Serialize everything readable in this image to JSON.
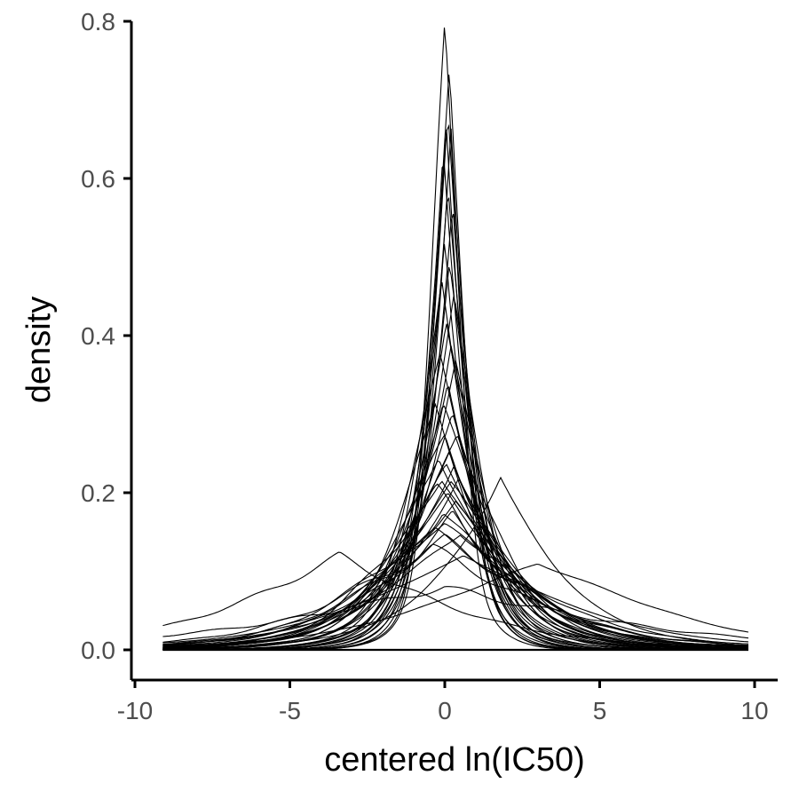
{
  "chart_data": {
    "type": "line",
    "title": "",
    "xlabel": "centered ln(IC50)",
    "ylabel": "density",
    "xlim": [
      -10,
      10
    ],
    "ylim": [
      0,
      0.8
    ],
    "xticks": [
      -10,
      -5,
      0,
      5,
      10
    ],
    "xtick_labels": [
      "-10",
      "-5",
      "0",
      "5",
      "10"
    ],
    "yticks": [
      0,
      0.2,
      0.4,
      0.6,
      0.8
    ],
    "ytick_labels": [
      "0.0",
      "0.2",
      "0.4",
      "0.6",
      "0.8"
    ],
    "grid": false,
    "legend": "none",
    "series_color": "#000000",
    "series_description": "many overlapping kernel density curves centered near 0",
    "x_support": [
      -9.1,
      9.8
    ],
    "series": [
      {
        "peak_x": 0.0,
        "peak_y": 0.76
      },
      {
        "peak_x": 0.15,
        "peak_y": 0.75
      },
      {
        "peak_x": 0.1,
        "peak_y": 0.72
      },
      {
        "peak_x": 0.05,
        "peak_y": 0.69
      },
      {
        "peak_x": 0.2,
        "peak_y": 0.66
      },
      {
        "peak_x": -0.05,
        "peak_y": 0.63
      },
      {
        "peak_x": 0.1,
        "peak_y": 0.6
      },
      {
        "peak_x": 0.25,
        "peak_y": 0.57
      },
      {
        "peak_x": 0.0,
        "peak_y": 0.54
      },
      {
        "peak_x": 0.15,
        "peak_y": 0.51
      },
      {
        "peak_x": -0.1,
        "peak_y": 0.48
      },
      {
        "peak_x": 0.3,
        "peak_y": 0.45
      },
      {
        "peak_x": 0.05,
        "peak_y": 0.42
      },
      {
        "peak_x": 0.2,
        "peak_y": 0.4
      },
      {
        "peak_x": -0.15,
        "peak_y": 0.38
      },
      {
        "peak_x": 0.35,
        "peak_y": 0.36
      },
      {
        "peak_x": 0.1,
        "peak_y": 0.34
      },
      {
        "peak_x": -0.05,
        "peak_y": 0.32
      },
      {
        "peak_x": 0.25,
        "peak_y": 0.3
      },
      {
        "peak_x": -0.3,
        "peak_y": 0.31
      },
      {
        "peak_x": 0.4,
        "peak_y": 0.28
      },
      {
        "peak_x": 0.0,
        "peak_y": 0.27
      },
      {
        "peak_x": 0.15,
        "peak_y": 0.26
      },
      {
        "peak_x": -0.2,
        "peak_y": 0.25
      },
      {
        "peak_x": 0.3,
        "peak_y": 0.24
      },
      {
        "peak_x": 0.05,
        "peak_y": 0.23
      },
      {
        "peak_x": -0.1,
        "peak_y": 0.22
      },
      {
        "peak_x": 0.45,
        "peak_y": 0.22
      },
      {
        "peak_x": 0.2,
        "peak_y": 0.21
      },
      {
        "peak_x": -0.25,
        "peak_y": 0.2
      },
      {
        "peak_x": 0.1,
        "peak_y": 0.2
      },
      {
        "peak_x": 0.35,
        "peak_y": 0.19
      },
      {
        "peak_x": -0.05,
        "peak_y": 0.18
      },
      {
        "peak_x": 0.25,
        "peak_y": 0.17
      },
      {
        "peak_x": 0.0,
        "peak_y": 0.16
      },
      {
        "peak_x": -0.3,
        "peak_y": 0.15
      },
      {
        "peak_x": 0.5,
        "peak_y": 0.15
      },
      {
        "peak_x": 0.0,
        "peak_y": 0.14
      },
      {
        "peak_x": -0.4,
        "peak_y": 0.13
      },
      {
        "peak_x": 0.6,
        "peak_y": 0.12
      },
      {
        "peak_x": 0.0,
        "peak_y": 0.08
      },
      {
        "peak_x": 1.8,
        "peak_y": 0.22
      },
      {
        "peak_x": -3.4,
        "peak_y": 0.12
      },
      {
        "peak_x": 3.0,
        "peak_y": 0.11
      }
    ]
  }
}
